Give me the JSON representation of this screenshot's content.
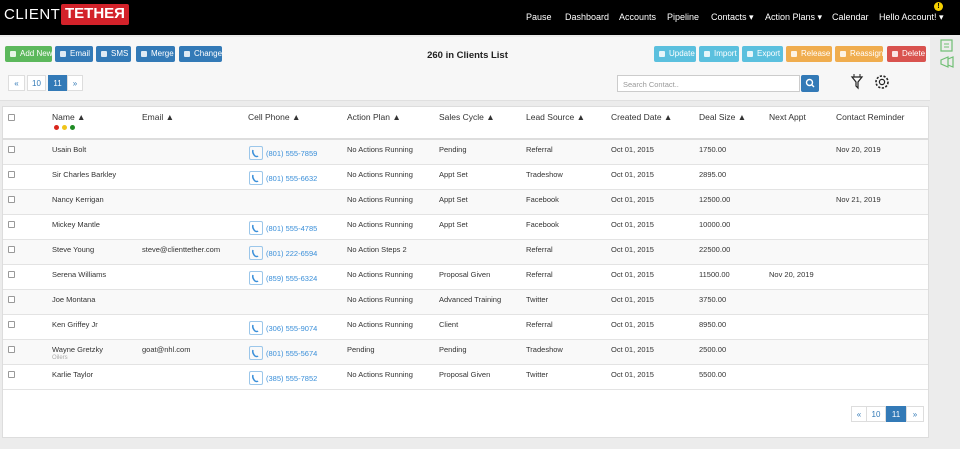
{
  "navbar": {
    "logo": {
      "left": "CLIENT",
      "right": "TETHEЯ"
    },
    "items": [
      "Pause",
      "Dashboard",
      "Accounts",
      "Pipeline",
      "Contacts ▾",
      "Action Plans ▾",
      "Calendar",
      "Hello Account! ▾"
    ],
    "badge": "!"
  },
  "toolbar": {
    "left_buttons": [
      "Add New",
      "Email",
      "SMS",
      "Merge",
      "Change"
    ],
    "title": "260 in Clients List",
    "right_buttons": [
      "Update",
      "Import",
      "Export",
      "Release",
      "Reassign",
      "Delete"
    ]
  },
  "pagination_top": [
    "«",
    "10",
    "11",
    "»"
  ],
  "search": {
    "placeholder": "Search Contact.."
  },
  "table": {
    "columns": [
      "Name ▲",
      "Email ▲",
      "Cell Phone ▲",
      "Action Plan ▲",
      "Sales Cycle ▲",
      "Lead Source ▲",
      "Created Date ▲",
      "Deal Size ▲",
      "Next Appt",
      "Contact Reminder"
    ],
    "rows": [
      {
        "name": "Usain Bolt",
        "phone": "(801) 555-7859",
        "action_plan": "No Actions Running",
        "sales_cycle": "Pending",
        "lead_source": "Referral",
        "created": "Oct 01, 2015",
        "deal_size": "1750.00",
        "reminder": "Nov 20, 2019"
      },
      {
        "name": "Sir Charles Barkley",
        "phone": "(801) 555-6632",
        "action_plan": "No Actions Running",
        "sales_cycle": "Appt Set",
        "lead_source": "Tradeshow",
        "created": "Oct 01, 2015",
        "deal_size": "2895.00"
      },
      {
        "name": "Nancy Kerrigan",
        "action_plan": "No Actions Running",
        "sales_cycle": "Appt Set",
        "lead_source": "Facebook",
        "created": "Oct 01, 2015",
        "deal_size": "12500.00",
        "reminder": "Nov 21, 2019"
      },
      {
        "name": "Mickey Mantle",
        "phone": "(801) 555-4785",
        "action_plan": "No Actions Running",
        "sales_cycle": "Appt Set",
        "lead_source": "Facebook",
        "created": "Oct 01, 2015",
        "deal_size": "10000.00"
      },
      {
        "name": "Steve Young",
        "email": "steve@clienttether.com",
        "phone": "(801) 222-6594",
        "action_plan": "No Action Steps 2",
        "lead_source": "Referral",
        "created": "Oct 01, 2015",
        "deal_size": "22500.00"
      },
      {
        "name": "Serena Williams",
        "phone": "(859) 555-6324",
        "action_plan": "No Actions Running",
        "sales_cycle": "Proposal Given",
        "lead_source": "Referral",
        "created": "Oct 01, 2015",
        "deal_size": "11500.00",
        "next_appt": "Nov 20, 2019"
      },
      {
        "name": "Joe Montana",
        "action_plan": "No Actions Running",
        "sales_cycle": "Advanced Training",
        "lead_source": "Twitter",
        "created": "Oct 01, 2015",
        "deal_size": "3750.00"
      },
      {
        "name": "Ken Griffey Jr",
        "phone": "(306) 555-9074",
        "action_plan": "No Actions Running",
        "sales_cycle": "Client",
        "lead_source": "Referral",
        "created": "Oct 01, 2015",
        "deal_size": "8950.00"
      },
      {
        "name": "Wayne Gretzky",
        "sub": "Oilers",
        "email": "goat@nhl.com",
        "phone": "(801) 555-5674",
        "action_plan": "Pending",
        "sales_cycle": "Pending",
        "lead_source": "Tradeshow",
        "created": "Oct 01, 2015",
        "deal_size": "2500.00"
      },
      {
        "name": "Karlie Taylor",
        "phone": "(385) 555-7852",
        "action_plan": "No Actions Running",
        "sales_cycle": "Proposal Given",
        "lead_source": "Twitter",
        "created": "Oct 01, 2015",
        "deal_size": "5500.00"
      }
    ]
  },
  "pagination_bottom": [
    "«",
    "10",
    "11",
    "»"
  ]
}
